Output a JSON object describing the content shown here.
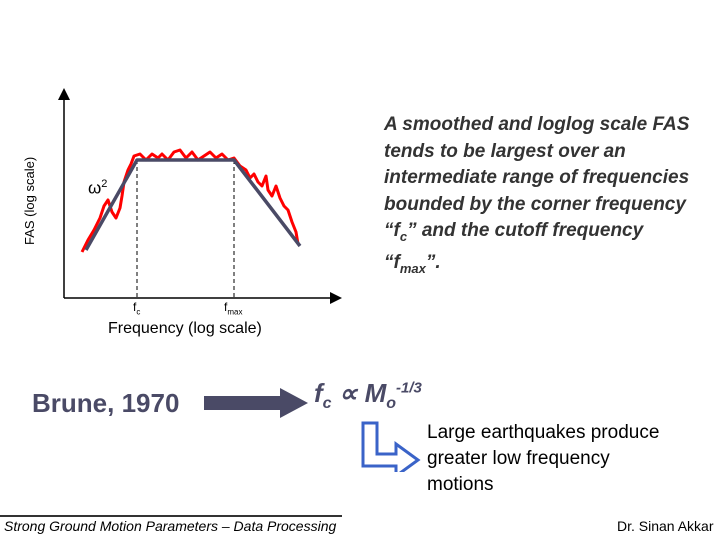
{
  "diagram": {
    "y_axis_label": "FAS (log scale)",
    "x_axis_label": "Frequency (log scale)",
    "slope_label": "ω",
    "slope_exponent": "2",
    "fc_label": "f",
    "fc_sub": "c",
    "fmax_label": "f",
    "fmax_sub": "max",
    "smoothed_color": "#4a4a66",
    "raw_color": "#ff0000"
  },
  "description": {
    "part1": "A smoothed and loglog scale FAS tends to be largest over an intermediate range of frequencies bounded by the corner frequency “f",
    "fc_sub": "c",
    "part2": "” and the cutoff frequency “f",
    "fmax_sub": "max",
    "part3": "”."
  },
  "citation": "Brune, 1970",
  "formula": {
    "f": "f",
    "f_sub": "c",
    "prop": " ∝ M",
    "m_sub": "o",
    "exponent": "-1/3"
  },
  "consequence": "Large earthquakes produce greater low frequency motions",
  "footer": {
    "left": "Strong Ground Motion Parameters – Data Processing",
    "right": "Dr. Sinan Akkar"
  }
}
